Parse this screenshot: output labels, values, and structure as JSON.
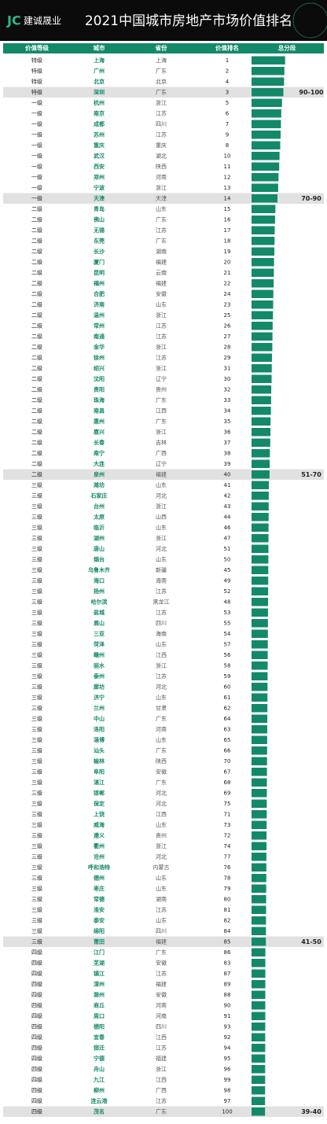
{
  "header": {
    "logo": "建诚晟业",
    "title": "2021中国城市房地产市场价值排名"
  },
  "table": {
    "columns": [
      "价值等级",
      "城市",
      "省份",
      "价值排名",
      "总分段"
    ],
    "bar_color": "#13896a",
    "rows": [
      {
        "grade": "特级",
        "city": "上海",
        "province": "上海",
        "rank": 1,
        "score": 97
      },
      {
        "grade": "特级",
        "city": "广州",
        "province": "广东",
        "rank": 2,
        "score": 95
      },
      {
        "grade": "特级",
        "city": "北京",
        "province": "北京",
        "rank": 4,
        "score": 94
      },
      {
        "grade": "特级",
        "city": "深圳",
        "province": "广东",
        "rank": 3,
        "score": 92,
        "band": "90-100"
      },
      {
        "grade": "一级",
        "city": "杭州",
        "province": "浙江",
        "rank": 5,
        "score": 88
      },
      {
        "grade": "一级",
        "city": "南京",
        "province": "江苏",
        "rank": 6,
        "score": 86
      },
      {
        "grade": "一级",
        "city": "成都",
        "province": "四川",
        "rank": 7,
        "score": 85
      },
      {
        "grade": "一级",
        "city": "苏州",
        "province": "江苏",
        "rank": 9,
        "score": 84
      },
      {
        "grade": "一级",
        "city": "重庆",
        "province": "重庆",
        "rank": 8,
        "score": 83
      },
      {
        "grade": "一级",
        "city": "武汉",
        "province": "湖北",
        "rank": 10,
        "score": 81
      },
      {
        "grade": "一级",
        "city": "西安",
        "province": "陕西",
        "rank": 11,
        "score": 80
      },
      {
        "grade": "一级",
        "city": "郑州",
        "province": "河南",
        "rank": 12,
        "score": 78
      },
      {
        "grade": "一级",
        "city": "宁波",
        "province": "浙江",
        "rank": 13,
        "score": 77
      },
      {
        "grade": "一级",
        "city": "天津",
        "province": "天津",
        "rank": 14,
        "score": 75,
        "band": "70-90"
      },
      {
        "grade": "二级",
        "city": "青岛",
        "province": "山东",
        "rank": 15,
        "score": 69
      },
      {
        "grade": "二级",
        "city": "佛山",
        "province": "广东",
        "rank": 16,
        "score": 68
      },
      {
        "grade": "二级",
        "city": "无锡",
        "province": "江苏",
        "rank": 17,
        "score": 67
      },
      {
        "grade": "二级",
        "city": "东莞",
        "province": "广东",
        "rank": 18,
        "score": 66.5
      },
      {
        "grade": "二级",
        "city": "长沙",
        "province": "湖南",
        "rank": 19,
        "score": 66
      },
      {
        "grade": "二级",
        "city": "厦门",
        "province": "福建",
        "rank": 20,
        "score": 65
      },
      {
        "grade": "二级",
        "city": "昆明",
        "province": "云南",
        "rank": 21,
        "score": 64.5
      },
      {
        "grade": "二级",
        "city": "福州",
        "province": "福建",
        "rank": 22,
        "score": 64
      },
      {
        "grade": "二级",
        "city": "合肥",
        "province": "安徽",
        "rank": 24,
        "score": 63
      },
      {
        "grade": "二级",
        "city": "济南",
        "province": "山东",
        "rank": 23,
        "score": 62.5
      },
      {
        "grade": "二级",
        "city": "温州",
        "province": "浙江",
        "rank": 25,
        "score": 62
      },
      {
        "grade": "二级",
        "city": "常州",
        "province": "江苏",
        "rank": 26,
        "score": 61
      },
      {
        "grade": "二级",
        "city": "南通",
        "province": "江苏",
        "rank": 27,
        "score": 60.5
      },
      {
        "grade": "二级",
        "city": "金华",
        "province": "浙江",
        "rank": 28,
        "score": 60
      },
      {
        "grade": "二级",
        "city": "徐州",
        "province": "江苏",
        "rank": 29,
        "score": 59
      },
      {
        "grade": "二级",
        "city": "绍兴",
        "province": "浙江",
        "rank": 31,
        "score": 58.5
      },
      {
        "grade": "二级",
        "city": "沈阳",
        "province": "辽宁",
        "rank": 30,
        "score": 58
      },
      {
        "grade": "二级",
        "city": "贵阳",
        "province": "贵州",
        "rank": 32,
        "score": 57
      },
      {
        "grade": "二级",
        "city": "珠海",
        "province": "广东",
        "rank": 33,
        "score": 56.5
      },
      {
        "grade": "二级",
        "city": "南昌",
        "province": "江西",
        "rank": 34,
        "score": 56
      },
      {
        "grade": "二级",
        "city": "惠州",
        "province": "广东",
        "rank": 35,
        "score": 55
      },
      {
        "grade": "二级",
        "city": "嘉兴",
        "province": "浙江",
        "rank": 36,
        "score": 54.5
      },
      {
        "grade": "二级",
        "city": "长春",
        "province": "吉林",
        "rank": 37,
        "score": 54
      },
      {
        "grade": "二级",
        "city": "南宁",
        "province": "广西",
        "rank": 38,
        "score": 53
      },
      {
        "grade": "二级",
        "city": "大连",
        "province": "辽宁",
        "rank": 39,
        "score": 52.5
      },
      {
        "grade": "二级",
        "city": "泉州",
        "province": "福建",
        "rank": 40,
        "score": 52,
        "band": "51-70"
      },
      {
        "grade": "三级",
        "city": "潍坊",
        "province": "山东",
        "rank": 41,
        "score": 50
      },
      {
        "grade": "三级",
        "city": "石家庄",
        "province": "河北",
        "rank": 42,
        "score": 49.8
      },
      {
        "grade": "三级",
        "city": "台州",
        "province": "浙江",
        "rank": 43,
        "score": 49.6
      },
      {
        "grade": "三级",
        "city": "太原",
        "province": "山西",
        "rank": 44,
        "score": 49.4
      },
      {
        "grade": "三级",
        "city": "临沂",
        "province": "山东",
        "rank": 46,
        "score": 49.2
      },
      {
        "grade": "三级",
        "city": "湖州",
        "province": "浙江",
        "rank": 47,
        "score": 49
      },
      {
        "grade": "三级",
        "city": "唐山",
        "province": "河北",
        "rank": 51,
        "score": 48.8
      },
      {
        "grade": "三级",
        "city": "烟台",
        "province": "山东",
        "rank": 50,
        "score": 48.6
      },
      {
        "grade": "三级",
        "city": "乌鲁木齐",
        "province": "新疆",
        "rank": 45,
        "score": 48.4
      },
      {
        "grade": "三级",
        "city": "海口",
        "province": "海南",
        "rank": 49,
        "score": 48.2
      },
      {
        "grade": "三级",
        "city": "扬州",
        "province": "江苏",
        "rank": 52,
        "score": 48
      },
      {
        "grade": "三级",
        "city": "哈尔滨",
        "province": "黑龙江",
        "rank": 48,
        "score": 47.8
      },
      {
        "grade": "三级",
        "city": "盐城",
        "province": "江苏",
        "rank": 53,
        "score": 47.6
      },
      {
        "grade": "三级",
        "city": "眉山",
        "province": "四川",
        "rank": 55,
        "score": 47.4
      },
      {
        "grade": "三级",
        "city": "三亚",
        "province": "海南",
        "rank": 54,
        "score": 47.2
      },
      {
        "grade": "三级",
        "city": "菏泽",
        "province": "山东",
        "rank": 57,
        "score": 47
      },
      {
        "grade": "三级",
        "city": "赣州",
        "province": "江西",
        "rank": 56,
        "score": 46.8
      },
      {
        "grade": "三级",
        "city": "丽水",
        "province": "浙江",
        "rank": 58,
        "score": 46.6
      },
      {
        "grade": "三级",
        "city": "泰州",
        "province": "江苏",
        "rank": 59,
        "score": 46.4
      },
      {
        "grade": "三级",
        "city": "廊坊",
        "province": "河北",
        "rank": 60,
        "score": 46.2
      },
      {
        "grade": "三级",
        "city": "济宁",
        "province": "山东",
        "rank": 61,
        "score": 46
      },
      {
        "grade": "三级",
        "city": "兰州",
        "province": "甘肃",
        "rank": 62,
        "score": 45.8
      },
      {
        "grade": "三级",
        "city": "中山",
        "province": "广东",
        "rank": 64,
        "score": 45.6
      },
      {
        "grade": "三级",
        "city": "洛阳",
        "province": "河南",
        "rank": 63,
        "score": 45.4
      },
      {
        "grade": "三级",
        "city": "淄博",
        "province": "山东",
        "rank": 65,
        "score": 45.2
      },
      {
        "grade": "三级",
        "city": "汕头",
        "province": "广东",
        "rank": 66,
        "score": 45
      },
      {
        "grade": "三级",
        "city": "榆林",
        "province": "陕西",
        "rank": 70,
        "score": 44.8
      },
      {
        "grade": "三级",
        "city": "阜阳",
        "province": "安徽",
        "rank": 67,
        "score": 44.6
      },
      {
        "grade": "三级",
        "city": "湛江",
        "province": "广东",
        "rank": 68,
        "score": 44.4
      },
      {
        "grade": "三级",
        "city": "邯郸",
        "province": "河北",
        "rank": 69,
        "score": 44.2
      },
      {
        "grade": "三级",
        "city": "保定",
        "province": "河北",
        "rank": 75,
        "score": 44
      },
      {
        "grade": "三级",
        "city": "上饶",
        "province": "江西",
        "rank": 71,
        "score": 43.8
      },
      {
        "grade": "三级",
        "city": "威海",
        "province": "山东",
        "rank": 73,
        "score": 43.6
      },
      {
        "grade": "三级",
        "city": "遵义",
        "province": "贵州",
        "rank": 72,
        "score": 43.4
      },
      {
        "grade": "三级",
        "city": "衢州",
        "province": "浙江",
        "rank": 74,
        "score": 43.2
      },
      {
        "grade": "三级",
        "city": "沧州",
        "province": "河北",
        "rank": 77,
        "score": 43
      },
      {
        "grade": "三级",
        "city": "呼和浩特",
        "province": "内蒙古",
        "rank": 76,
        "score": 42.8
      },
      {
        "grade": "三级",
        "city": "德州",
        "province": "山东",
        "rank": 78,
        "score": 42.6
      },
      {
        "grade": "三级",
        "city": "枣庄",
        "province": "山东",
        "rank": 79,
        "score": 42.4
      },
      {
        "grade": "三级",
        "city": "常德",
        "province": "湖南",
        "rank": 80,
        "score": 42.2
      },
      {
        "grade": "三级",
        "city": "淮安",
        "province": "江苏",
        "rank": 81,
        "score": 42
      },
      {
        "grade": "三级",
        "city": "泰安",
        "province": "山东",
        "rank": 82,
        "score": 41.8
      },
      {
        "grade": "三级",
        "city": "绵阳",
        "province": "四川",
        "rank": 84,
        "score": 41.6
      },
      {
        "grade": "三级",
        "city": "莆田",
        "province": "福建",
        "rank": 85,
        "score": 41.4,
        "band": "41-50"
      },
      {
        "grade": "四级",
        "city": "江门",
        "province": "广东",
        "rank": 86,
        "score": 40
      },
      {
        "grade": "四级",
        "city": "芜湖",
        "province": "安徽",
        "rank": 83,
        "score": 39.9
      },
      {
        "grade": "四级",
        "city": "镇江",
        "province": "江苏",
        "rank": 87,
        "score": 39.9
      },
      {
        "grade": "四级",
        "city": "漳州",
        "province": "福建",
        "rank": 89,
        "score": 39.8
      },
      {
        "grade": "四级",
        "city": "滁州",
        "province": "安徽",
        "rank": 88,
        "score": 39.8
      },
      {
        "grade": "四级",
        "city": "商丘",
        "province": "河南",
        "rank": 90,
        "score": 39.7
      },
      {
        "grade": "四级",
        "city": "周口",
        "province": "河南",
        "rank": 91,
        "score": 39.7
      },
      {
        "grade": "四级",
        "city": "德阳",
        "province": "四川",
        "rank": 93,
        "score": 39.6
      },
      {
        "grade": "四级",
        "city": "宜春",
        "province": "江西",
        "rank": 92,
        "score": 39.5
      },
      {
        "grade": "四级",
        "city": "宿迁",
        "province": "江苏",
        "rank": 94,
        "score": 39.5
      },
      {
        "grade": "四级",
        "city": "宁德",
        "province": "福建",
        "rank": 95,
        "score": 39.4
      },
      {
        "grade": "四级",
        "city": "舟山",
        "province": "浙江",
        "rank": 96,
        "score": 39.3
      },
      {
        "grade": "四级",
        "city": "九江",
        "province": "江西",
        "rank": 99,
        "score": 39.3
      },
      {
        "grade": "四级",
        "city": "柳州",
        "province": "广西",
        "rank": 98,
        "score": 39.2
      },
      {
        "grade": "四级",
        "city": "连云港",
        "province": "江苏",
        "rank": 97,
        "score": 39.1
      },
      {
        "grade": "四级",
        "city": "茂名",
        "province": "广东",
        "rank": 100,
        "score": 39,
        "band": "39-40"
      }
    ]
  }
}
